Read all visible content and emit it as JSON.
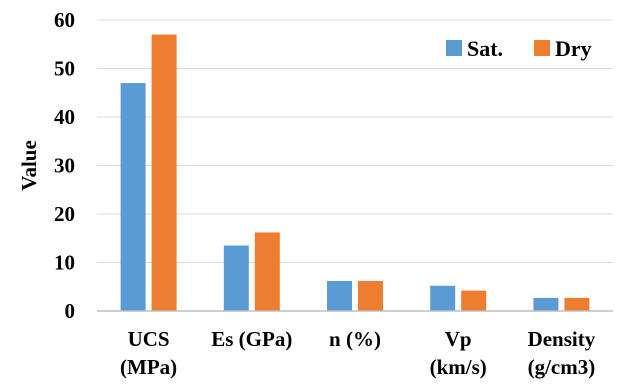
{
  "chart_data": {
    "type": "bar",
    "title": "",
    "xlabel": "",
    "ylabel": "Value",
    "ylim": [
      0,
      60
    ],
    "yticks": [
      0,
      10,
      20,
      30,
      40,
      50,
      60
    ],
    "grid": "horizontal",
    "legend_position": "top-right",
    "categories": [
      [
        "UCS",
        "(MPa)"
      ],
      [
        "Es (GPa)"
      ],
      [
        "n (%)"
      ],
      [
        "Vp",
        "(km/s)"
      ],
      [
        "Density",
        "(g/cm3)"
      ]
    ],
    "series": [
      {
        "name": "Sat.",
        "color": "#5B9BD5",
        "values": [
          47,
          13.5,
          6.2,
          5.2,
          2.7
        ]
      },
      {
        "name": "Dry",
        "color": "#ED7D31",
        "values": [
          57,
          16.2,
          6.2,
          4.2,
          2.7
        ]
      }
    ]
  }
}
